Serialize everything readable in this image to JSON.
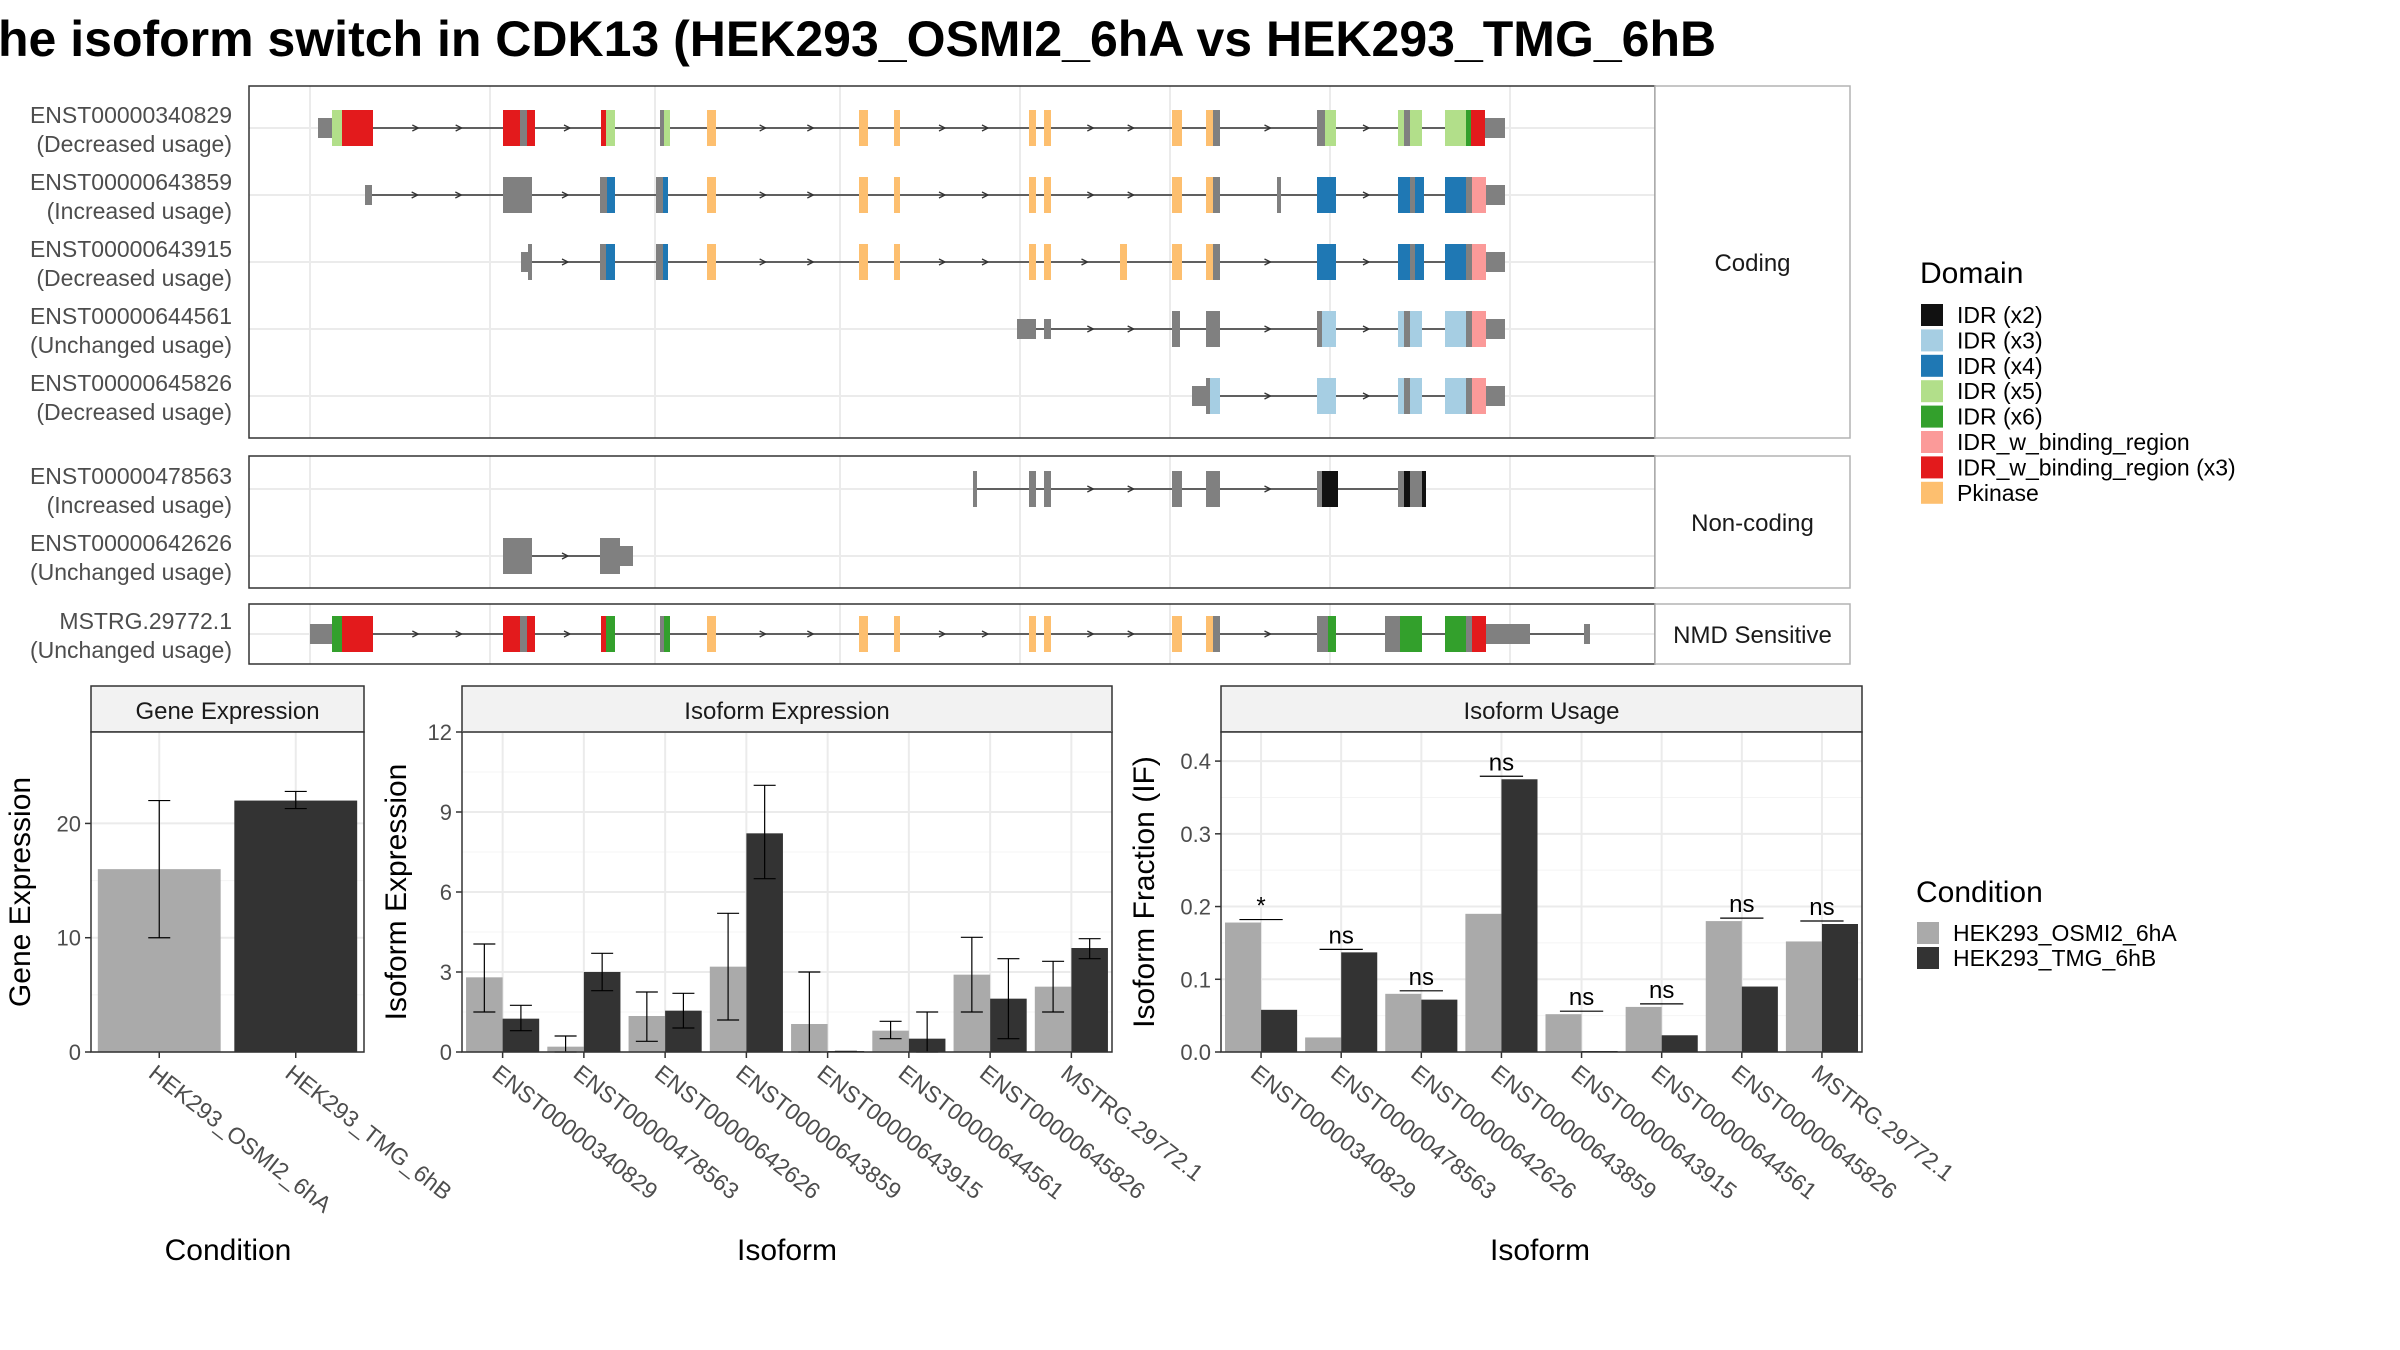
{
  "title": "he isoform switch in CDK13 (HEK293_OSMI2_6hA vs HEK293_TMG_6hB",
  "colors": {
    "intron": "#333333",
    "exon_grey": "#808080",
    "grid": "#ebebeb",
    "panel_border": "#333333",
    "strip_fill": "#f2f2f2",
    "strip_border": "#b3b3b3",
    "cond_a": "#aaaaaa",
    "cond_b": "#333333"
  },
  "structure_panels": [
    {
      "label": "Coding",
      "tracks": [
        {
          "name": "ENST00000340829",
          "usage": "(Decreased usage)"
        },
        {
          "name": "ENST00000643859",
          "usage": "(Increased usage)"
        },
        {
          "name": "ENST00000643915",
          "usage": "(Decreased usage)"
        },
        {
          "name": "ENST00000644561",
          "usage": "(Unchanged usage)"
        },
        {
          "name": "ENST00000645826",
          "usage": "(Decreased usage)"
        }
      ]
    },
    {
      "label": "Non-coding",
      "tracks": [
        {
          "name": "ENST00000478563",
          "usage": "(Increased usage)"
        },
        {
          "name": "ENST00000642626",
          "usage": "(Unchanged usage)"
        }
      ]
    },
    {
      "label": "NMD Sensitive",
      "tracks": [
        {
          "name": "MSTRG.29772.1",
          "usage": "(Unchanged usage)"
        }
      ]
    }
  ],
  "domain_legend": {
    "title": "Domain",
    "items": [
      {
        "label": "IDR (x2)",
        "color": "#111111"
      },
      {
        "label": "IDR (x3)",
        "color": "#a6cee3"
      },
      {
        "label": "IDR (x4)",
        "color": "#1f78b4"
      },
      {
        "label": "IDR (x5)",
        "color": "#b2df8a"
      },
      {
        "label": "IDR (x6)",
        "color": "#33a02c"
      },
      {
        "label": "IDR_w_binding_region",
        "color": "#fb9a99"
      },
      {
        "label": "IDR_w_binding_region (x3)",
        "color": "#e31a1c"
      },
      {
        "label": "Pkinase",
        "color": "#fdbf6f"
      }
    ]
  },
  "condition_legend": {
    "title": "Condition",
    "items": [
      {
        "label": "HEK293_OSMI2_6hA",
        "color": "#aaaaaa"
      },
      {
        "label": "HEK293_TMG_6hB",
        "color": "#333333"
      }
    ]
  },
  "chart_data": [
    {
      "type": "bar",
      "strip": "Gene Expression",
      "xlabel": "Condition",
      "ylabel": "Gene Expression",
      "ylim": [
        0,
        28
      ],
      "yticks": [
        0,
        10,
        20
      ],
      "categories": [
        "HEK293_OSMI2_6hA",
        "HEK293_TMG_6hB"
      ],
      "values": [
        16,
        22
      ],
      "err_low": [
        10,
        21.3
      ],
      "err_high": [
        22,
        22.8
      ],
      "bar_colors": [
        "#aaaaaa",
        "#333333"
      ]
    },
    {
      "type": "bar",
      "strip": "Isoform Expression",
      "xlabel": "Isoform",
      "ylabel": "Isoform Expression",
      "ylim": [
        0,
        12
      ],
      "yticks": [
        0,
        3,
        6,
        9,
        12
      ],
      "categories": [
        "ENST00000340829",
        "ENST00000478563",
        "ENST00000642626",
        "ENST00000643859",
        "ENST00000643915",
        "ENST00000644561",
        "ENST00000645826",
        "MSTRG.29772.1"
      ],
      "series": [
        {
          "name": "HEK293_OSMI2_6hA",
          "values": [
            2.8,
            0.2,
            1.35,
            3.2,
            1.05,
            0.8,
            2.9,
            2.45
          ],
          "err_low": [
            1.5,
            0.0,
            0.4,
            1.2,
            0.0,
            0.5,
            1.5,
            1.5
          ],
          "err_high": [
            4.05,
            0.6,
            2.25,
            5.2,
            3.0,
            1.15,
            4.3,
            3.4
          ]
        },
        {
          "name": "HEK293_TMG_6hB",
          "values": [
            1.25,
            3.0,
            1.55,
            8.2,
            0.02,
            0.5,
            2.0,
            3.9
          ],
          "err_low": [
            0.8,
            2.3,
            0.9,
            6.5,
            0.02,
            0.0,
            0.5,
            3.5
          ],
          "err_high": [
            1.75,
            3.7,
            2.2,
            10.0,
            0.02,
            1.5,
            3.5,
            4.25
          ]
        }
      ]
    },
    {
      "type": "bar",
      "strip": "Isoform Usage",
      "xlabel": "Isoform",
      "ylabel": "Isoform Fraction (IF)",
      "ylim": [
        0,
        0.44
      ],
      "yticks": [
        "0.0",
        "0.1",
        "0.2",
        "0.3",
        "0.4"
      ],
      "categories": [
        "ENST00000340829",
        "ENST00000478563",
        "ENST00000642626",
        "ENST00000643859",
        "ENST00000643915",
        "ENST00000644561",
        "ENST00000645826",
        "MSTRG.29772.1"
      ],
      "series": [
        {
          "name": "HEK293_OSMI2_6hA",
          "values": [
            0.178,
            0.02,
            0.08,
            0.19,
            0.052,
            0.062,
            0.18,
            0.152
          ]
        },
        {
          "name": "HEK293_TMG_6hB",
          "values": [
            0.058,
            0.137,
            0.072,
            0.375,
            0.0,
            0.023,
            0.09,
            0.176
          ]
        }
      ],
      "significance": [
        "*",
        "ns",
        "ns",
        "ns",
        "ns",
        "ns",
        "ns",
        "ns"
      ]
    }
  ]
}
